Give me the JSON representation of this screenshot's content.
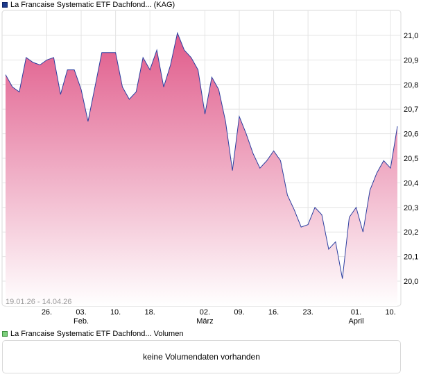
{
  "legend": {
    "price_series": "La Francaise Systematic ETF Dachfond... (KAG)",
    "volume_series": "La Francaise Systematic ETF Dachfond... Volumen"
  },
  "volume_panel": {
    "message": "keine Volumendaten vorhanden"
  },
  "date_range": "19.01.26 - 14.04.26",
  "colors": {
    "line": "#2b3fa0",
    "fill_top": "#e05a8a",
    "fill_bottom": "#ffffff",
    "grid": "#e4e4e4"
  },
  "chart_data": {
    "type": "area",
    "title": "La Francaise Systematic ETF Dachfond... (KAG)",
    "xlabel": "",
    "ylabel": "",
    "ylim": [
      19.9,
      21.1
    ],
    "y_ticks": [
      "21,0",
      "20,9",
      "20,8",
      "20,7",
      "20,6",
      "20,5",
      "20,4",
      "20,3",
      "20,2",
      "20,1",
      "20,0"
    ],
    "y_tick_values": [
      21.0,
      20.9,
      20.8,
      20.7,
      20.6,
      20.5,
      20.4,
      20.3,
      20.2,
      20.1,
      20.0
    ],
    "x_ticks": [
      {
        "label": "26.",
        "sub": "",
        "index": 6
      },
      {
        "label": "03.",
        "sub": "Feb.",
        "index": 11
      },
      {
        "label": "10.",
        "sub": "",
        "index": 16
      },
      {
        "label": "18.",
        "sub": "",
        "index": 21
      },
      {
        "label": "02.",
        "sub": "März",
        "index": 29
      },
      {
        "label": "09.",
        "sub": "",
        "index": 34
      },
      {
        "label": "16.",
        "sub": "",
        "index": 39
      },
      {
        "label": "23.",
        "sub": "",
        "index": 44
      },
      {
        "label": "01.",
        "sub": "April",
        "index": 51
      },
      {
        "label": "10.",
        "sub": "",
        "index": 56
      }
    ],
    "series": [
      {
        "name": "La Francaise Systematic ETF Dachfond... (KAG)",
        "values": [
          20.84,
          20.79,
          20.77,
          20.91,
          20.89,
          20.88,
          20.9,
          20.91,
          20.76,
          20.86,
          20.86,
          20.78,
          20.65,
          20.79,
          20.93,
          20.93,
          20.93,
          20.79,
          20.74,
          20.77,
          20.91,
          20.86,
          20.94,
          20.79,
          20.88,
          21.01,
          20.94,
          20.91,
          20.86,
          20.68,
          20.83,
          20.78,
          20.65,
          20.45,
          20.67,
          20.6,
          20.52,
          20.46,
          20.49,
          20.53,
          20.49,
          20.35,
          20.29,
          20.22,
          20.23,
          20.3,
          20.27,
          20.13,
          20.16,
          20.01,
          20.26,
          20.3,
          20.2,
          20.37,
          20.44,
          20.49,
          20.46,
          20.63
        ]
      }
    ]
  }
}
